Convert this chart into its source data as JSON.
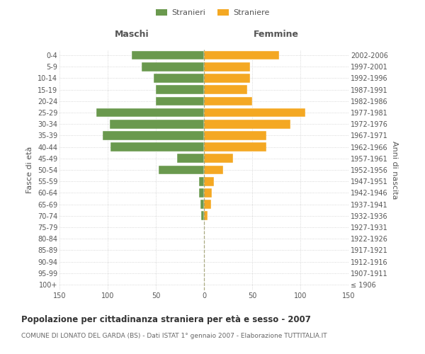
{
  "age_groups": [
    "100+",
    "95-99",
    "90-94",
    "85-89",
    "80-84",
    "75-79",
    "70-74",
    "65-69",
    "60-64",
    "55-59",
    "50-54",
    "45-49",
    "40-44",
    "35-39",
    "30-34",
    "25-29",
    "20-24",
    "15-19",
    "10-14",
    "5-9",
    "0-4"
  ],
  "birth_years": [
    "≤ 1906",
    "1907-1911",
    "1912-1916",
    "1917-1921",
    "1922-1926",
    "1927-1931",
    "1932-1936",
    "1937-1941",
    "1942-1946",
    "1947-1951",
    "1952-1956",
    "1957-1961",
    "1962-1966",
    "1967-1971",
    "1972-1976",
    "1977-1981",
    "1982-1986",
    "1987-1991",
    "1992-1996",
    "1997-2001",
    "2002-2006"
  ],
  "maschi": [
    0,
    0,
    0,
    0,
    0,
    0,
    3,
    4,
    5,
    5,
    47,
    28,
    97,
    105,
    98,
    112,
    50,
    50,
    52,
    65,
    75
  ],
  "femmine": [
    0,
    0,
    0,
    0,
    0,
    0,
    4,
    7,
    8,
    10,
    20,
    30,
    65,
    65,
    90,
    105,
    50,
    45,
    48,
    48,
    78
  ],
  "male_color": "#6a994e",
  "female_color": "#f4a823",
  "background_color": "#ffffff",
  "grid_color": "#cccccc",
  "xlim": 150,
  "title": "Popolazione per cittadinanza straniera per età e sesso - 2007",
  "subtitle": "COMUNE DI LONATO DEL GARDA (BS) - Dati ISTAT 1° gennaio 2007 - Elaborazione TUTTITALIA.IT",
  "ylabel_left": "Fasce di età",
  "ylabel_right": "Anni di nascita",
  "xlabel_maschi": "Maschi",
  "xlabel_femmine": "Femmine",
  "legend_maschi": "Stranieri",
  "legend_femmine": "Straniere",
  "label_color": "#555555",
  "title_fontsize": 8.5,
  "subtitle_fontsize": 6.5,
  "tick_fontsize": 7,
  "header_fontsize": 9
}
